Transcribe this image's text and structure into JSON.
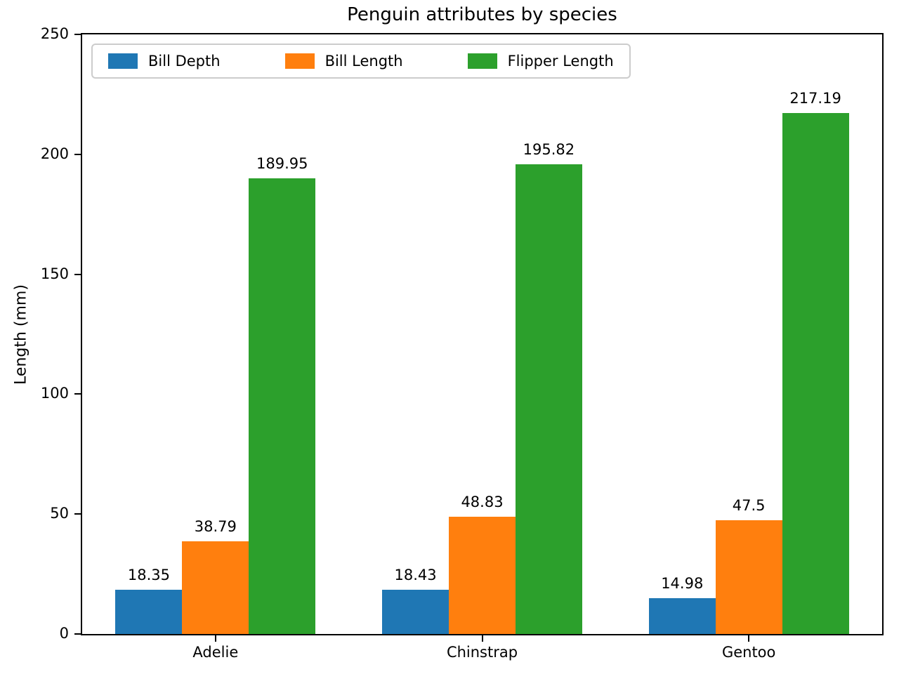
{
  "chart_data": {
    "type": "bar",
    "title": "Penguin attributes by species",
    "xlabel": "",
    "ylabel": "Length (mm)",
    "categories": [
      "Adelie",
      "Chinstrap",
      "Gentoo"
    ],
    "series": [
      {
        "name": "Bill Depth",
        "color": "#1f77b4",
        "values": [
          18.35,
          18.43,
          14.98
        ]
      },
      {
        "name": "Bill Length",
        "color": "#ff7f0e",
        "values": [
          38.79,
          48.83,
          47.5
        ]
      },
      {
        "name": "Flipper Length",
        "color": "#2ca02c",
        "values": [
          189.95,
          195.82,
          217.19
        ]
      }
    ],
    "value_labels": [
      [
        "18.35",
        "18.43",
        "14.98"
      ],
      [
        "38.79",
        "48.83",
        "47.5"
      ],
      [
        "189.95",
        "195.82",
        "217.19"
      ]
    ],
    "ylim": [
      0,
      250
    ],
    "yticks": [
      0,
      50,
      100,
      150,
      200,
      250
    ],
    "grid": false,
    "legend_position": "upper left",
    "bar_group_width_fraction": 0.25
  }
}
